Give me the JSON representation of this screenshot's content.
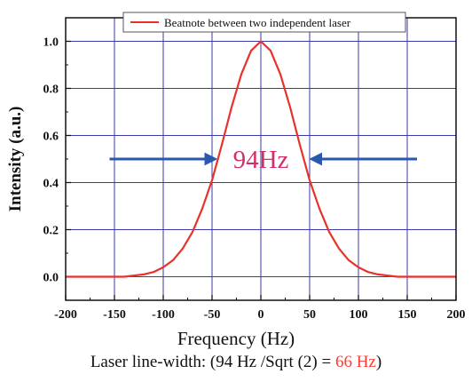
{
  "chart_data": {
    "type": "line",
    "xlabel": "Frequency (Hz)",
    "ylabel": "Intensity (a.u.)",
    "xlim": [
      -200,
      200
    ],
    "ylim": [
      -0.1,
      1.1
    ],
    "x_ticks": [
      -200,
      -150,
      -100,
      -50,
      0,
      50,
      100,
      150,
      200
    ],
    "y_ticks": [
      "0.0",
      "0.2",
      "0.4",
      "0.6",
      "0.8",
      "1.0"
    ],
    "y_tick_values": [
      0.0,
      0.2,
      0.4,
      0.6,
      0.8,
      1.0
    ],
    "grid": true,
    "legend_position": "top",
    "series": [
      {
        "name": "Beatnote between two independent laser",
        "color": "#e8312b",
        "x": [
          -200,
          -180,
          -160,
          -150,
          -140,
          -130,
          -120,
          -110,
          -100,
          -90,
          -80,
          -70,
          -60,
          -50,
          -40,
          -30,
          -20,
          -10,
          0,
          10,
          20,
          30,
          40,
          50,
          60,
          70,
          80,
          90,
          100,
          110,
          120,
          130,
          140,
          150,
          160,
          180,
          200
        ],
        "y": [
          0.0,
          0.0,
          0.0,
          0.0,
          0.0,
          0.005,
          0.01,
          0.02,
          0.04,
          0.07,
          0.12,
          0.19,
          0.29,
          0.41,
          0.56,
          0.72,
          0.86,
          0.96,
          1.0,
          0.96,
          0.86,
          0.72,
          0.56,
          0.41,
          0.29,
          0.19,
          0.12,
          0.07,
          0.04,
          0.02,
          0.01,
          0.005,
          0.0,
          0.0,
          0.0,
          0.0,
          0.0
        ]
      }
    ],
    "annotations": [
      {
        "text": "94Hz",
        "color": "#d0306a",
        "at": [
          0,
          0.5
        ]
      }
    ],
    "arrows": [
      {
        "from": [
          -155,
          0.5
        ],
        "to": [
          -47,
          0.5
        ],
        "color": "#2a57b0"
      },
      {
        "from": [
          160,
          0.5
        ],
        "to": [
          52,
          0.5
        ],
        "color": "#2a57b0"
      }
    ]
  },
  "caption": {
    "xlabel": "Frequency (Hz)",
    "line_prefix": "Laser line-width: (94 Hz /Sqrt (2) = ",
    "line_value": "66 Hz",
    "line_suffix": ")"
  }
}
